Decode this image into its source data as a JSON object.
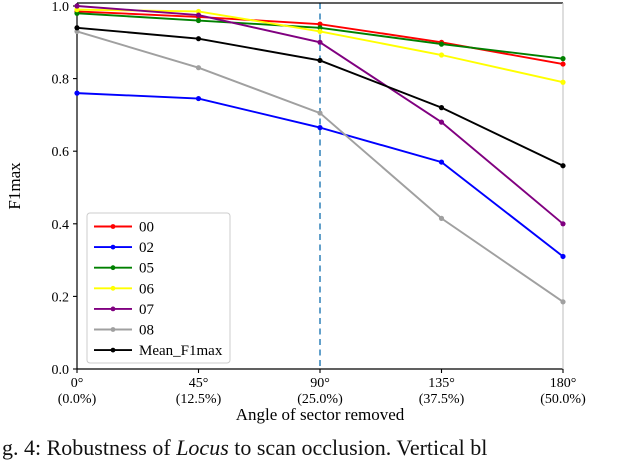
{
  "chart_data": {
    "type": "line",
    "title": "",
    "xlabel": "Angle of sector removed",
    "ylabel": "F1max",
    "x_degrees": [
      0,
      45,
      90,
      135,
      180
    ],
    "x_tick_labels_degree": [
      "0°",
      "45°",
      "90°",
      "135°",
      "180°"
    ],
    "x_tick_labels_percent": [
      "(0.0%)",
      "(12.5%)",
      "(25.0%)",
      "(37.5%)",
      "(50.0%)"
    ],
    "y_ticks": [
      0.0,
      0.2,
      0.4,
      0.6,
      0.8,
      1.0
    ],
    "y_tick_labels": [
      "0.0",
      "0.2",
      "0.4",
      "0.6",
      "0.8",
      "1.0"
    ],
    "xlim_degrees": [
      0,
      180
    ],
    "ylim": [
      0.0,
      1.0
    ],
    "grid": false,
    "legend_position": "lower-left",
    "vline": {
      "x_degrees": 90,
      "style": "dashed",
      "color": "#1f77b4"
    },
    "series": [
      {
        "name": "00",
        "color": "#ff0000",
        "values": [
          0.985,
          0.97,
          0.95,
          0.9,
          0.84
        ]
      },
      {
        "name": "02",
        "color": "#0000ff",
        "values": [
          0.76,
          0.745,
          0.665,
          0.57,
          0.31
        ]
      },
      {
        "name": "05",
        "color": "#008000",
        "values": [
          0.98,
          0.96,
          0.94,
          0.895,
          0.855
        ]
      },
      {
        "name": "06",
        "color": "#ffff00",
        "values": [
          0.99,
          0.985,
          0.93,
          0.865,
          0.79
        ]
      },
      {
        "name": "07",
        "color": "#800080",
        "values": [
          1.0,
          0.975,
          0.9,
          0.68,
          0.4
        ]
      },
      {
        "name": "08",
        "color": "#a0a0a0",
        "values": [
          0.93,
          0.83,
          0.705,
          0.415,
          0.185
        ]
      },
      {
        "name": "Mean_F1max",
        "color": "#000000",
        "values": [
          0.94,
          0.91,
          0.85,
          0.72,
          0.56
        ]
      }
    ]
  },
  "caption": {
    "prefix": "g. 4: Robustness of ",
    "italic": "Locus",
    "suffix": " to scan occlusion. Vertical bl"
  }
}
